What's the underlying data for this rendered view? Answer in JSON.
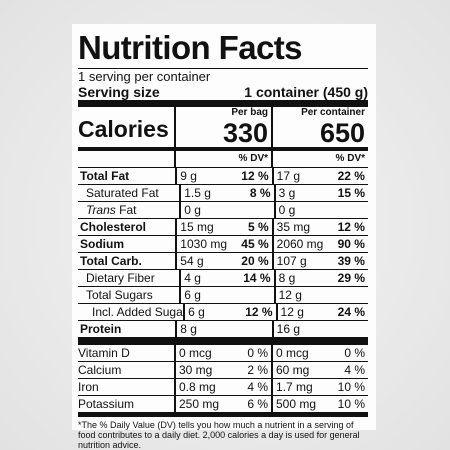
{
  "header": {
    "title": "Nutrition Facts",
    "servings": "1 serving per container",
    "serving_size_label": "Serving size",
    "serving_size_value": "1 container (450 g)"
  },
  "calories": {
    "label": "Calories",
    "columns": [
      {
        "heading": "Per bag",
        "value": "330",
        "dv_heading": "% DV*"
      },
      {
        "heading": "Per container",
        "value": "650",
        "dv_heading": "% DV*"
      }
    ]
  },
  "rows": [
    {
      "name": "Total Fat",
      "bold": true,
      "indent": 0,
      "cells": [
        [
          "9 g",
          "12 %"
        ],
        [
          "17 g",
          "22 %"
        ]
      ]
    },
    {
      "name": "Saturated Fat",
      "bold": false,
      "indent": 1,
      "cells": [
        [
          "1.5 g",
          "8 %"
        ],
        [
          "3 g",
          "15 %"
        ]
      ]
    },
    {
      "italic_prefix": "Trans",
      "name": "Fat",
      "bold": false,
      "indent": 1,
      "cells": [
        [
          "0 g",
          null
        ],
        [
          "0 g",
          null
        ]
      ]
    },
    {
      "name": "Cholesterol",
      "bold": true,
      "indent": 0,
      "cells": [
        [
          "15 mg",
          "5 %"
        ],
        [
          "35 mg",
          "12 %"
        ]
      ]
    },
    {
      "name": "Sodium",
      "bold": true,
      "indent": 0,
      "cells": [
        [
          "1030 mg",
          "45 %"
        ],
        [
          "2060 mg",
          "90 %"
        ]
      ]
    },
    {
      "name": "Total Carb.",
      "bold": true,
      "indent": 0,
      "cells": [
        [
          "54 g",
          "20 %"
        ],
        [
          "107 g",
          "39 %"
        ]
      ]
    },
    {
      "name": "Dietary Fiber",
      "bold": false,
      "indent": 1,
      "cells": [
        [
          "4 g",
          "14 %"
        ],
        [
          "8 g",
          "29 %"
        ]
      ]
    },
    {
      "name": "Total Sugars",
      "bold": false,
      "indent": 1,
      "cells": [
        [
          "6 g",
          null
        ],
        [
          "12 g",
          null
        ]
      ]
    },
    {
      "name": "Incl. Added Sugars",
      "bold": false,
      "indent": 2,
      "cells": [
        [
          "6 g",
          "12 %"
        ],
        [
          "12 g",
          "24 %"
        ]
      ]
    },
    {
      "name": "Protein",
      "bold": true,
      "indent": 0,
      "cells": [
        [
          "8 g",
          null
        ],
        [
          "16 g",
          null
        ]
      ]
    }
  ],
  "minerals": [
    {
      "name": "Vitamin D",
      "cells": [
        [
          "0 mcg",
          "0 %"
        ],
        [
          "0 mcg",
          "0 %"
        ]
      ]
    },
    {
      "name": "Calcium",
      "cells": [
        [
          "30 mg",
          "2 %"
        ],
        [
          "60 mg",
          "4 %"
        ]
      ]
    },
    {
      "name": "Iron",
      "cells": [
        [
          "0.8 mg",
          "4 %"
        ],
        [
          "1.7 mg",
          "10 %"
        ]
      ]
    },
    {
      "name": "Potassium",
      "cells": [
        [
          "250 mg",
          "6 %"
        ],
        [
          "500 mg",
          "10 %"
        ]
      ]
    }
  ],
  "footnote": "*The % Daily Value (DV) tells you how much a nutrient in a serving of food contributes to a daily diet. 2,000 calories a day is used for general nutrition advice."
}
